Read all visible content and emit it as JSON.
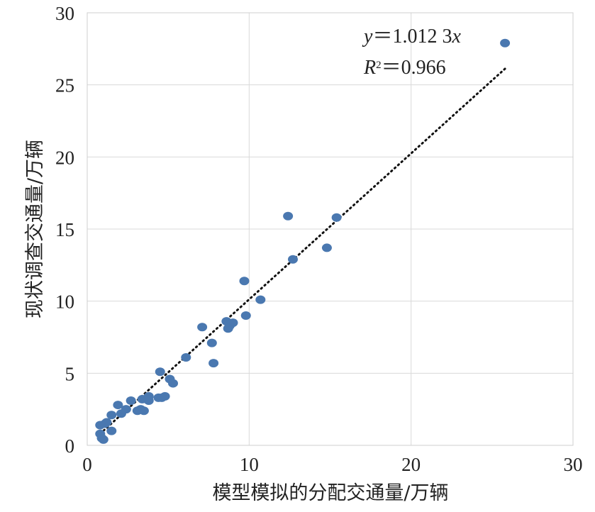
{
  "chart_data": {
    "type": "scatter",
    "xlabel": "模型模拟的分配交通量/万辆",
    "ylabel": "现状调查交通量/万辆",
    "xlim": [
      0,
      30
    ],
    "ylim": [
      0,
      30
    ],
    "xticks": [
      "0",
      "10",
      "20",
      "30"
    ],
    "yticks": [
      "0",
      "5",
      "10",
      "15",
      "20",
      "25",
      "30"
    ],
    "grid": true,
    "marker_color": "#4a78b0",
    "trendline": {
      "style": "dotted",
      "slope": 1.0123,
      "x_range": [
        0.8,
        25.8
      ],
      "color": "#111111"
    },
    "equation": {
      "y_var": "y",
      "eq_rhs": "＝1.012 3",
      "x_var": "x",
      "r_var": "R",
      "r_exp": "2",
      "r_rhs": "＝0.966"
    },
    "series": [
      {
        "x": [
          25.8,
          12.4,
          15.4,
          14.8,
          12.7,
          9.7,
          10.7,
          9.8,
          8.6,
          9.0,
          8.8,
          8.7,
          7.1,
          7.7,
          7.8,
          6.1,
          4.5,
          5.1,
          5.3,
          4.4,
          4.8,
          4.6,
          3.8,
          3.4,
          3.8,
          3.5,
          3.1,
          3.3,
          2.7,
          2.4,
          2.1,
          1.9,
          1.5,
          1.2,
          0.8,
          1.1,
          1.5,
          0.8,
          0.9,
          1.0
        ],
        "y": [
          27.9,
          15.9,
          15.8,
          13.7,
          12.9,
          11.4,
          10.1,
          9.0,
          8.6,
          8.5,
          8.3,
          8.1,
          8.2,
          7.1,
          5.7,
          6.1,
          5.1,
          4.6,
          4.3,
          3.3,
          3.4,
          3.3,
          3.4,
          3.2,
          3.1,
          2.4,
          2.4,
          2.5,
          3.1,
          2.5,
          2.2,
          2.8,
          2.1,
          1.6,
          1.4,
          1.5,
          1.0,
          0.8,
          0.5,
          0.4
        ]
      }
    ]
  }
}
